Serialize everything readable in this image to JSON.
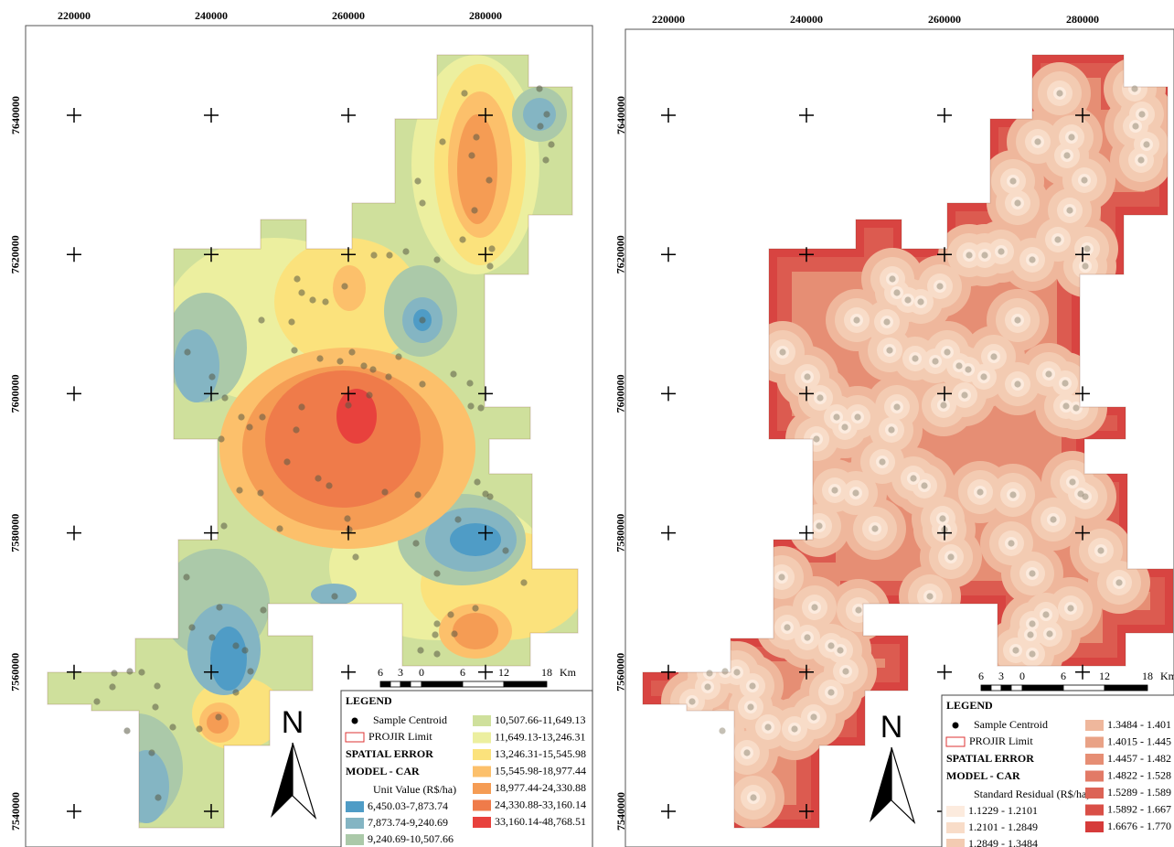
{
  "panels": [
    {
      "x_ticks": [
        220000,
        240000,
        260000,
        280000
      ],
      "y_ticks": [
        7640000,
        7620000,
        7600000,
        7580000,
        7560000,
        7540000
      ],
      "scale_labels": [
        "6",
        "3",
        "0",
        "6",
        "12",
        "18",
        "Km"
      ],
      "north": "N",
      "legend": {
        "title": "LEGEND",
        "sample": "Sample Centroid",
        "limit": "PROJIR Limit",
        "model_lines": [
          "SPATIAL ERROR",
          "MODEL - CAR"
        ],
        "variable": "Unit Value (R$/ha)",
        "classes": [
          {
            "label": "6,450.03-7,873.74",
            "color": "#4f9cc6"
          },
          {
            "label": "7,873.74-9,240.69",
            "color": "#84b5c3"
          },
          {
            "label": "9,240.69-10,507.66",
            "color": "#abc9a9"
          },
          {
            "label": "10,507.66-11,649.13",
            "color": "#cfe09c"
          },
          {
            "label": "11,649.13-13,246.31",
            "color": "#ecef9f"
          },
          {
            "label": "13,246.31-15,545.98",
            "color": "#fbe27c"
          },
          {
            "label": "15,545.98-18,977.44",
            "color": "#fcc06b"
          },
          {
            "label": "18,977.44-24,330.88",
            "color": "#f59c54"
          },
          {
            "label": "24,330.88-33,160.14",
            "color": "#ef7b4a"
          },
          {
            "label": "33,160.14-48,768.51",
            "color": "#e8413d"
          }
        ]
      }
    },
    {
      "x_ticks": [
        220000,
        240000,
        260000,
        280000
      ],
      "y_ticks": [
        7640000,
        7620000,
        7600000,
        7580000,
        7560000,
        7540000
      ],
      "scale_labels": [
        "6",
        "3",
        "0",
        "6",
        "12",
        "18",
        "Km"
      ],
      "north": "N",
      "legend": {
        "title": "LEGEND",
        "sample": "Sample Centroid",
        "limit": "PROJIR Limit",
        "model_lines": [
          "SPATIAL ERROR",
          "MODEL - CAR"
        ],
        "variable": "Standard Residual (R$/ha)",
        "classes": [
          {
            "label": "1.1229 - 1.2101",
            "color": "#fcebde"
          },
          {
            "label": "1.2101 - 1.2849",
            "color": "#f8dcc8"
          },
          {
            "label": "1.2849 - 1.3484",
            "color": "#f3cbb2"
          },
          {
            "label": "1.3484 - 1.401",
            "color": "#efb79c"
          },
          {
            "label": "1.4015 - 1.445",
            "color": "#e9a286"
          },
          {
            "label": "1.4457 - 1.482",
            "color": "#e68e74"
          },
          {
            "label": "1.4822 - 1.528",
            "color": "#e27a66"
          },
          {
            "label": "1.5289 - 1.589",
            "color": "#dc6356"
          },
          {
            "label": "1.5892 - 1.667",
            "color": "#d94f47"
          },
          {
            "label": "1.6676 - 1.770",
            "color": "#d63b3a"
          }
        ]
      }
    }
  ]
}
